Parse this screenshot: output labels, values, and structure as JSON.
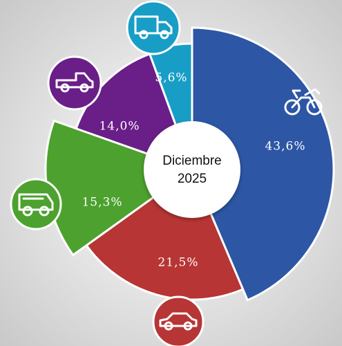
{
  "chart_data": {
    "type": "pie",
    "categories": [
      "Motocicletas",
      "Automóviles",
      "Camionetas",
      "Pick-up",
      "Camiones"
    ],
    "values": [
      43.6,
      21.5,
      15.3,
      14.0,
      5.6
    ],
    "value_labels": [
      "43,6%",
      "21,5%",
      "15,3%",
      "14,0%",
      "5,6%"
    ],
    "colors": [
      "#2d56a5",
      "#b73535",
      "#4da12e",
      "#6a1e87",
      "#189ec6"
    ],
    "center_text": [
      "Diciembre",
      "2025"
    ]
  }
}
